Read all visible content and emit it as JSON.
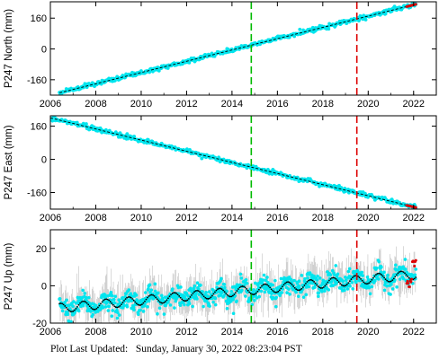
{
  "footer": {
    "label": "Plot Last Updated:",
    "timestamp": "Sunday, January 30, 2022 08:23:04 PST"
  },
  "chart_data": [
    {
      "id": "north",
      "type": "scatter",
      "ylabel": "P247 North (mm)",
      "xlim": [
        2006,
        2023
      ],
      "ylim": [
        -240,
        245
      ],
      "x_ticks": [
        2006,
        2008,
        2010,
        2012,
        2014,
        2016,
        2018,
        2020,
        2022
      ],
      "y_ticks": [
        -160,
        0,
        160
      ],
      "grid": false,
      "series": [
        {
          "color": "#00e5ee",
          "x": [
            2006.4,
            2022.1
          ],
          "y": [
            -228,
            232
          ],
          "style": "dense-points"
        },
        {
          "color": "#000000",
          "x": [
            2006.4,
            2022.1
          ],
          "y": [
            -228,
            232
          ],
          "style": "model-line"
        },
        {
          "color": "#dd0000",
          "x": [
            2021.7,
            2022.1
          ],
          "y": [
            220,
            232
          ],
          "style": "recent-points"
        }
      ],
      "vlines": [
        {
          "x": 2014.85,
          "color": "#00bb00"
        },
        {
          "x": 2019.5,
          "color": "#dd0000"
        }
      ]
    },
    {
      "id": "east",
      "type": "scatter",
      "ylabel": "P247 East (mm)",
      "xlim": [
        2006,
        2023
      ],
      "ylim": [
        -240,
        210
      ],
      "x_ticks": [
        2006,
        2008,
        2010,
        2012,
        2014,
        2016,
        2018,
        2020,
        2022
      ],
      "y_ticks": [
        -160,
        0,
        160
      ],
      "grid": false,
      "series": [
        {
          "color": "#00e5ee",
          "x": [
            2006.0,
            2022.1
          ],
          "y": [
            200,
            -232
          ],
          "style": "dense-points"
        },
        {
          "color": "#000000",
          "x": [
            2006.0,
            2022.1
          ],
          "y": [
            200,
            -232
          ],
          "style": "model-line"
        },
        {
          "color": "#dd0000",
          "x": [
            2021.7,
            2022.1
          ],
          "y": [
            -222,
            -232
          ],
          "style": "recent-points"
        }
      ],
      "vlines": [
        {
          "x": 2014.85,
          "color": "#00bb00"
        },
        {
          "x": 2019.5,
          "color": "#dd0000"
        }
      ]
    },
    {
      "id": "up",
      "type": "scatter",
      "ylabel": "P247 Up (mm)",
      "xlim": [
        2006,
        2023
      ],
      "ylim": [
        -20,
        30
      ],
      "x_ticks": [
        2006,
        2008,
        2010,
        2012,
        2014,
        2016,
        2018,
        2020,
        2022
      ],
      "y_ticks": [
        -20,
        0,
        20
      ],
      "grid": false,
      "series": [
        {
          "color": "#00e5ee",
          "style": "noisy-seasonal",
          "trend_start": -12,
          "trend_end": 6,
          "seasonal_amplitude": 2.5,
          "x": [
            2006.4,
            2022.1
          ]
        },
        {
          "color": "#000000",
          "style": "seasonal-model",
          "trend_start": -12,
          "trend_end": 6,
          "seasonal_amplitude": 2.5,
          "x": [
            2006.4,
            2022.1
          ]
        },
        {
          "color": "#dd0000",
          "style": "recent-points",
          "x": [
            2021.7,
            2022.1
          ],
          "y": [
            -6,
            16
          ]
        }
      ],
      "vlines": [
        {
          "x": 2014.85,
          "color": "#00bb00"
        },
        {
          "x": 2019.5,
          "color": "#dd0000"
        }
      ]
    }
  ]
}
